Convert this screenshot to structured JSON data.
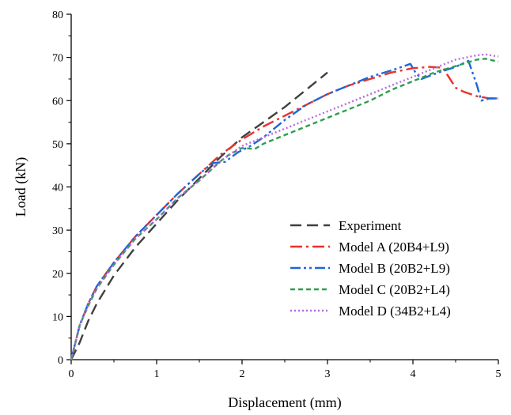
{
  "chart_data": {
    "type": "line",
    "xlabel": "Displacement (mm)",
    "ylabel": "Load (kN)",
    "xlim": [
      0,
      5
    ],
    "ylim": [
      0,
      80
    ],
    "xticks": [
      0,
      1,
      2,
      3,
      4,
      5
    ],
    "yticks": [
      0,
      10,
      20,
      30,
      40,
      50,
      60,
      70,
      80
    ],
    "xtick_labels": [
      "0",
      "1",
      "2",
      "3",
      "4",
      "5"
    ],
    "ytick_labels": [
      "0",
      "10",
      "20",
      "30",
      "40",
      "50",
      "60",
      "70",
      "80"
    ],
    "grid": false,
    "legend_position": "bottom-right",
    "series": [
      {
        "name": "Experiment",
        "color": "#404040",
        "style": "dash",
        "x": [
          0,
          0.1,
          0.2,
          0.3,
          0.5,
          0.75,
          1.0,
          1.25,
          1.5,
          1.75,
          2.0,
          2.25,
          2.5,
          2.75,
          3.0
        ],
        "y": [
          0,
          4,
          9,
          13,
          19.5,
          26,
          31.5,
          37,
          42,
          47,
          51.5,
          55,
          58.5,
          62.5,
          66.5
        ]
      },
      {
        "name": "Model A (20B4+L9)",
        "color": "#e8312a",
        "style": "dashdot",
        "x": [
          0,
          0.05,
          0.1,
          0.2,
          0.3,
          0.5,
          0.75,
          1.0,
          1.25,
          1.5,
          1.75,
          2.0,
          2.25,
          2.5,
          2.75,
          3.0,
          3.25,
          3.5,
          3.75,
          4.0,
          4.2,
          4.35,
          4.5,
          4.6,
          4.75,
          4.9,
          5.0
        ],
        "y": [
          0,
          4,
          8,
          13,
          17,
          22.5,
          28.5,
          33.5,
          38.5,
          43,
          47.5,
          51,
          54,
          56.5,
          59,
          61.5,
          63.5,
          65,
          66.5,
          67.5,
          67.8,
          67.6,
          63,
          62,
          61,
          60.5,
          60.5
        ]
      },
      {
        "name": "Model B (20B2+L9)",
        "color": "#1f66d6",
        "style": "dashdotdot",
        "x": [
          0,
          0.05,
          0.1,
          0.2,
          0.3,
          0.5,
          0.75,
          1.0,
          1.25,
          1.5,
          1.65,
          1.8,
          1.95,
          2.1,
          2.25,
          2.5,
          2.75,
          3.0,
          3.25,
          3.5,
          3.75,
          3.9,
          3.97,
          4.03,
          4.1,
          4.3,
          4.5,
          4.65,
          4.75,
          4.8,
          4.9,
          5.0
        ],
        "y": [
          0,
          4,
          8,
          13,
          17,
          22.5,
          28.5,
          33.5,
          38.5,
          43,
          45.5,
          45.8,
          48,
          49.5,
          51.5,
          55.5,
          59,
          61.5,
          63.5,
          65.5,
          67,
          68,
          68.5,
          66.5,
          65,
          66.5,
          67.8,
          69.2,
          63.5,
          60,
          60.5,
          60.5
        ]
      },
      {
        "name": "Model C (20B2+L4)",
        "color": "#2e9e4f",
        "style": "shortdash",
        "x": [
          0,
          0.05,
          0.1,
          0.2,
          0.3,
          0.5,
          0.75,
          1.0,
          1.25,
          1.5,
          1.75,
          1.85,
          2.0,
          2.15,
          2.25,
          2.5,
          2.75,
          3.0,
          3.25,
          3.5,
          3.75,
          4.0,
          4.25,
          4.5,
          4.75,
          4.85,
          5.0
        ],
        "y": [
          0,
          4,
          8,
          12.5,
          16.5,
          22,
          28,
          32.5,
          37.5,
          41.5,
          46,
          47.5,
          49,
          48.8,
          50,
          52,
          54,
          56,
          58,
          60,
          62.5,
          64.5,
          66.5,
          68,
          69.5,
          69.7,
          69
        ]
      },
      {
        "name": "Model D (34B2+L4)",
        "color": "#b66be0",
        "style": "dot",
        "x": [
          0,
          0.05,
          0.1,
          0.2,
          0.3,
          0.5,
          0.75,
          1.0,
          1.25,
          1.5,
          1.75,
          2.0,
          2.25,
          2.5,
          2.75,
          3.0,
          3.25,
          3.5,
          3.75,
          4.0,
          4.25,
          4.5,
          4.75,
          4.85,
          5.0
        ],
        "y": [
          0,
          4,
          8,
          12.5,
          16.5,
          22,
          28,
          32.5,
          37.5,
          41.5,
          46,
          49.5,
          51.5,
          53.5,
          55.5,
          57.5,
          59.5,
          61.5,
          63.5,
          65.5,
          67.5,
          69.5,
          70.5,
          70.7,
          70.2
        ]
      }
    ]
  }
}
